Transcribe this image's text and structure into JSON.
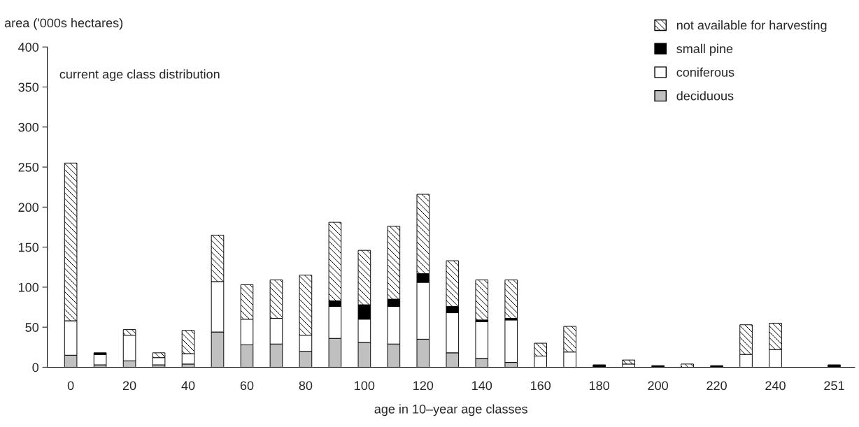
{
  "chart_data": {
    "type": "bar",
    "stacked": true,
    "categories": [
      "0",
      null,
      "20",
      null,
      "40",
      null,
      "60",
      null,
      "80",
      null,
      "100",
      null,
      "120",
      null,
      "140",
      null,
      "160",
      null,
      "180",
      null,
      "200",
      null,
      "220",
      null,
      "240",
      null,
      "251"
    ],
    "series": [
      {
        "name": "deciduous",
        "color": "#c0c0c0",
        "values": [
          15,
          3,
          8,
          3,
          4,
          44,
          28,
          29,
          20,
          36,
          31,
          29,
          35,
          18,
          11,
          6,
          null,
          null,
          0,
          0,
          0,
          0,
          0,
          0,
          0,
          0,
          0
        ]
      },
      {
        "name": "coniferous",
        "color": "#ffffff",
        "values": [
          43,
          13,
          32,
          9,
          13,
          63,
          32,
          32,
          20,
          40,
          29,
          47,
          71,
          50,
          46,
          53,
          14,
          19,
          0,
          4,
          0,
          0,
          0,
          16,
          22,
          0,
          0
        ]
      },
      {
        "name": "small pine",
        "color": "#000000",
        "values": [
          0,
          2,
          0,
          0,
          0,
          0,
          0,
          0,
          0,
          7,
          18,
          9,
          11,
          8,
          2,
          2,
          0,
          0,
          3,
          0,
          2,
          0,
          2,
          0,
          0,
          0,
          3
        ]
      },
      {
        "name": "not available for harvesting",
        "color": "#ffffff",
        "values": [
          197,
          0,
          7,
          6,
          29,
          58,
          43,
          48,
          75,
          98,
          68,
          91,
          99,
          57,
          50,
          48,
          16,
          32,
          0,
          5,
          0,
          4,
          0,
          37,
          33,
          0,
          0
        ]
      }
    ],
    "ylim": [
      0,
      400
    ],
    "yticks": [
      0,
      50,
      100,
      150,
      200,
      250,
      300,
      350,
      400
    ],
    "ylabel": "area ('000s hectares)",
    "xlabel": "age in 10–year age classes",
    "annotations": [
      "current age class distribution"
    ],
    "legend": "top right",
    "grid": false
  }
}
